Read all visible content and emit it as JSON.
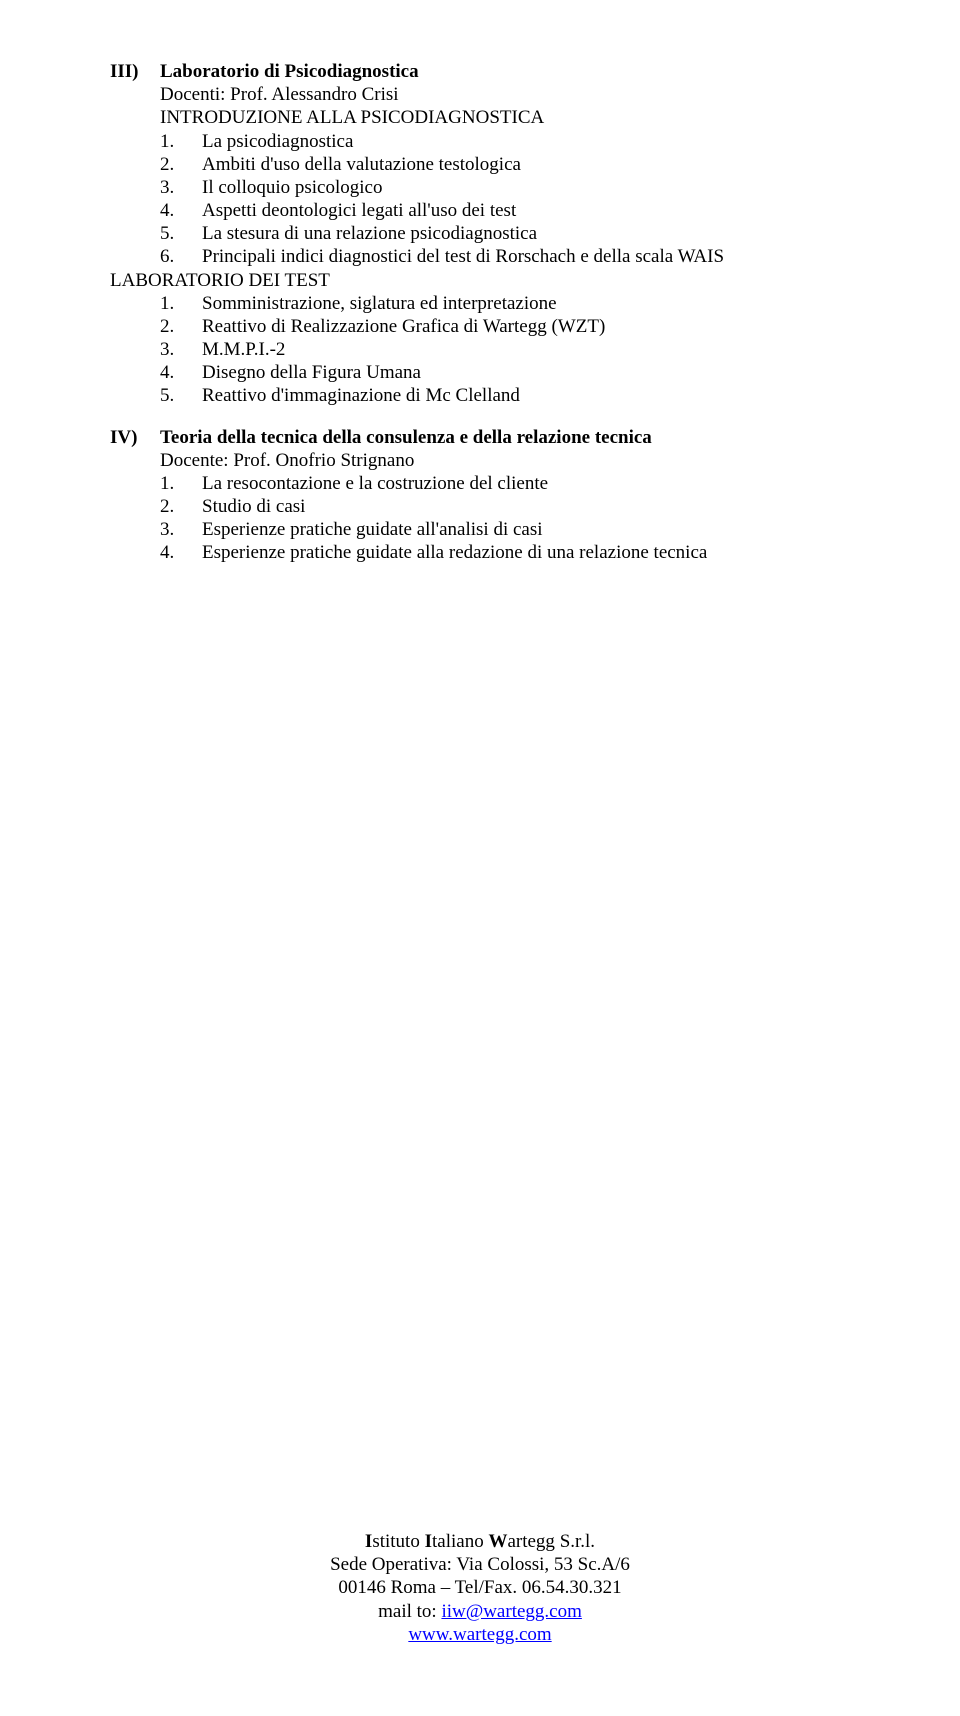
{
  "sections": [
    {
      "roman": "III)",
      "title": "Laboratorio di Psicodiagnostica",
      "subtitle": "Docenti: Prof. Alessandro Crisi",
      "intro_caps": "INTRODUZIONE ALLA PSICODIAGNOSTICA",
      "items_a": [
        {
          "n": "1.",
          "t": "La psicodiagnostica"
        },
        {
          "n": "2.",
          "t": "Ambiti d'uso della valutazione testologica"
        },
        {
          "n": "3.",
          "t": "Il colloquio psicologico"
        },
        {
          "n": "4.",
          "t": "Aspetti deontologici legati all'uso dei test"
        },
        {
          "n": "5.",
          "t": "La stesura di una relazione psicodiagnostica"
        },
        {
          "n": "6.",
          "t": "Principali indici diagnostici del test di Rorschach e della scala WAIS"
        }
      ],
      "lab_title": "LABORATORIO DEI TEST",
      "items_b": [
        {
          "n": "1.",
          "t": "Somministrazione, siglatura ed interpretazione"
        },
        {
          "n": "2.",
          "t": "Reattivo di Realizzazione Grafica di Wartegg (WZT)"
        },
        {
          "n": "3.",
          "t": "M.M.P.I.-2"
        },
        {
          "n": "4.",
          "t": "Disegno della Figura Umana"
        },
        {
          "n": "5.",
          "t": "Reattivo d'immaginazione di Mc Clelland"
        }
      ]
    },
    {
      "roman": "IV)",
      "title": "Teoria della tecnica della consulenza e della relazione tecnica",
      "subtitle": "Docente: Prof. Onofrio Strignano",
      "items": [
        {
          "n": "1.",
          "t": "La resocontazione e la costruzione del cliente"
        },
        {
          "n": "2.",
          "t": "Studio di casi"
        },
        {
          "n": "3.",
          "t": "Esperienze pratiche guidate all'analisi di casi"
        },
        {
          "n": "4.",
          "t": "Esperienze pratiche guidate alla redazione di una relazione tecnica"
        }
      ]
    }
  ],
  "footer": {
    "inst_i1": "I",
    "inst_w1": "stituto ",
    "inst_i2": "I",
    "inst_w2": "taliano ",
    "inst_i3": "W",
    "inst_w3": "artegg ",
    "inst_srl": "S.r.l.",
    "addr1": "Sede Operativa: Via Colossi, 53 Sc.A/6",
    "addr2": "00146 Roma – Tel/Fax. 06.54.30.321",
    "mail_label": "mail to: ",
    "mail_link": "iiw@wartegg.com",
    "site": "www.wartegg.com"
  }
}
